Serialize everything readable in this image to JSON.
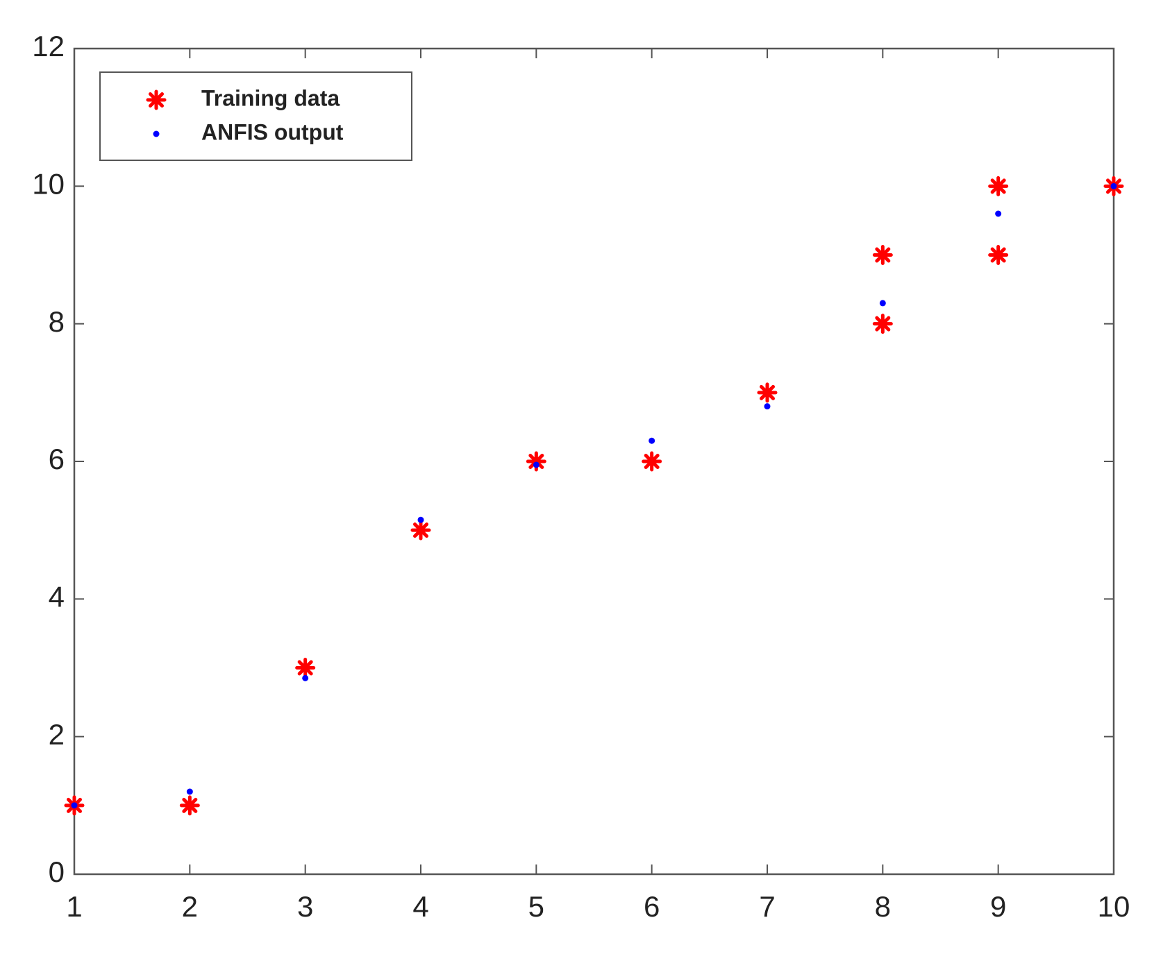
{
  "chart_data": {
    "type": "scatter",
    "series": [
      {
        "name": "Training data",
        "color": "#ff0000",
        "marker": "asterisk",
        "x": [
          1,
          2,
          3,
          4,
          5,
          6,
          7,
          8,
          8,
          9,
          9,
          10
        ],
        "values": [
          1,
          1,
          3,
          5,
          6,
          6,
          7,
          8,
          9,
          9,
          10,
          10
        ]
      },
      {
        "name": "ANFIS output",
        "color": "#0000ff",
        "marker": "dot",
        "x": [
          1,
          2,
          3,
          4,
          5,
          6,
          7,
          8,
          9,
          10
        ],
        "values": [
          1,
          1.2,
          2.85,
          5.15,
          5.95,
          6.3,
          6.8,
          8.3,
          9.6,
          10
        ]
      }
    ],
    "xlim": [
      1,
      10
    ],
    "xticks": [
      1,
      2,
      3,
      4,
      5,
      6,
      7,
      8,
      9,
      10
    ],
    "ylim": [
      0,
      12
    ],
    "yticks": [
      0,
      2,
      4,
      6,
      8,
      10,
      12
    ],
    "grid": false,
    "legend": "upper left"
  }
}
